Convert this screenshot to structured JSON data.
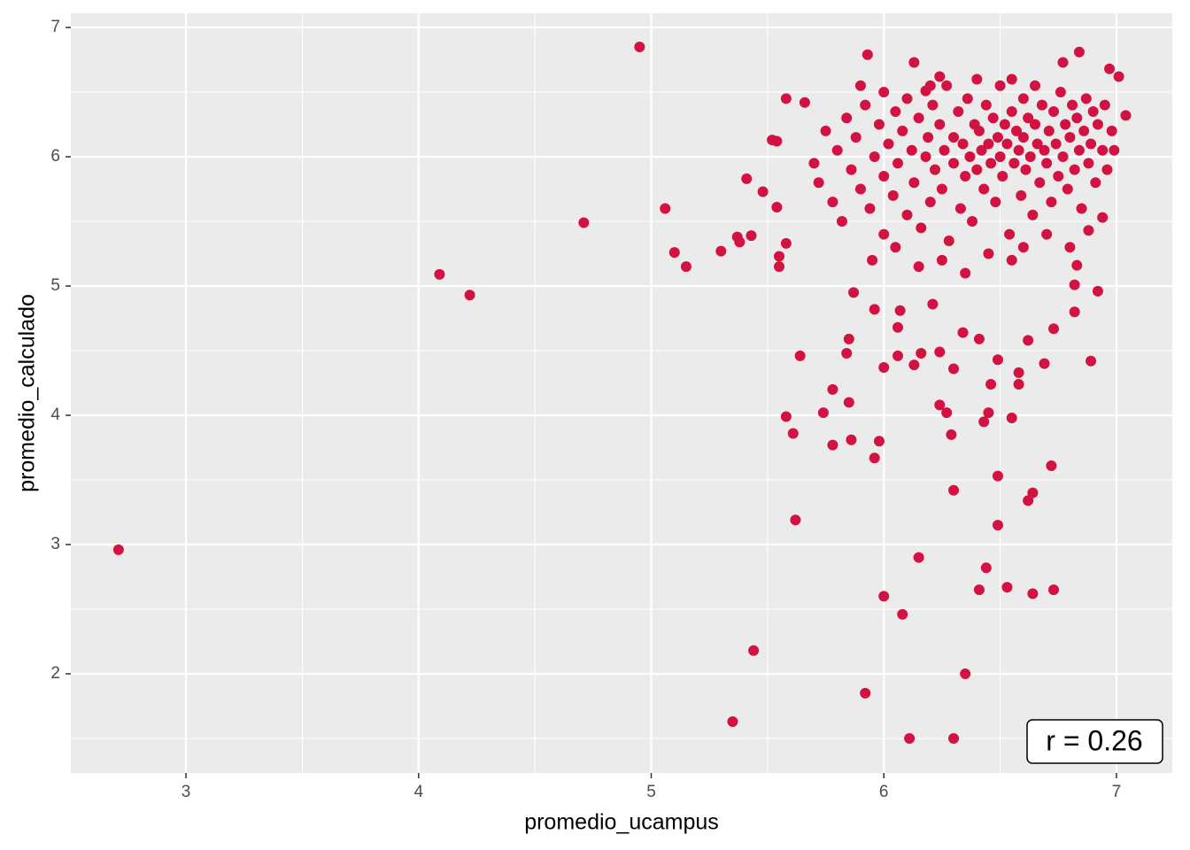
{
  "chart_data": {
    "type": "scatter",
    "x_label": "promedio_ucampus",
    "y_label": "promedio_calculado",
    "annotation": "r = 0.26",
    "color": "#d21240",
    "xlim": [
      2.505,
      7.24
    ],
    "ylim": [
      1.233,
      7.11
    ],
    "xticks": [
      3,
      4,
      5,
      6,
      7
    ],
    "yticks": [
      2,
      3,
      4,
      5,
      6,
      7
    ],
    "grid": true,
    "x": [
      2.71,
      4.09,
      4.22,
      4.71,
      4.95,
      5.06,
      5.1,
      5.15,
      5.3,
      5.37,
      5.38,
      5.43,
      5.41,
      5.35,
      5.44,
      5.62,
      5.92,
      6.0,
      6.11,
      6.3,
      6.08,
      6.15,
      6.35,
      6.3,
      6.41,
      6.44,
      6.53,
      6.49,
      6.49,
      6.62,
      6.64,
      6.64,
      6.73,
      6.72,
      6.89,
      5.58,
      5.61,
      5.78,
      5.74,
      5.78,
      5.64,
      5.86,
      5.96,
      5.98,
      5.85,
      5.84,
      5.85,
      6.0,
      6.13,
      6.24,
      6.27,
      6.29,
      6.43,
      6.45,
      6.55,
      6.58,
      6.58,
      6.46,
      6.3,
      6.16,
      6.24,
      6.69,
      6.82,
      6.82,
      6.92,
      6.73,
      6.62,
      6.49,
      6.41,
      6.34,
      6.06,
      6.07,
      5.96,
      5.87,
      6.06,
      6.21,
      5.55,
      5.58,
      5.55,
      5.54,
      5.48,
      5.52,
      5.54,
      5.58,
      5.66,
      5.93,
      6.13,
      6.24,
      6.18,
      6.97,
      7.01,
      7.04,
      6.99,
      6.84,
      6.77,
      6.94,
      6.88,
      6.83,
      5.7,
      5.72,
      5.75,
      5.78,
      5.8,
      5.82,
      5.84,
      5.86,
      5.88,
      5.9,
      5.92,
      5.94,
      5.96,
      5.98,
      6.0,
      6.0,
      6.02,
      6.04,
      6.05,
      6.06,
      6.08,
      6.1,
      6.1,
      6.12,
      6.13,
      6.15,
      6.16,
      6.18,
      6.19,
      6.2,
      6.21,
      6.22,
      6.24,
      6.25,
      6.26,
      6.27,
      6.28,
      6.3,
      6.3,
      6.32,
      6.33,
      6.34,
      6.35,
      6.36,
      6.37,
      6.38,
      6.39,
      6.4,
      6.41,
      6.42,
      6.43,
      6.44,
      6.45,
      6.46,
      6.47,
      6.48,
      6.49,
      6.5,
      6.5,
      6.51,
      6.52,
      6.53,
      6.54,
      6.55,
      6.56,
      6.57,
      6.58,
      6.59,
      6.6,
      6.6,
      6.61,
      6.62,
      6.63,
      6.64,
      6.65,
      6.66,
      6.67,
      6.68,
      6.69,
      6.7,
      6.71,
      6.72,
      6.73,
      6.74,
      6.75,
      6.76,
      6.77,
      6.78,
      6.79,
      6.8,
      6.81,
      6.82,
      6.83,
      6.84,
      6.85,
      6.86,
      6.87,
      6.88,
      6.89,
      6.9,
      6.91,
      6.92,
      6.94,
      6.95,
      6.96,
      6.98,
      6.6,
      6.45,
      6.7,
      6.25,
      6.05,
      5.95,
      6.35,
      6.15,
      6.55,
      6.8,
      6.4,
      6.55,
      6.65,
      6.2,
      6.0,
      5.9
    ],
    "y": [
      2.96,
      5.09,
      4.93,
      5.49,
      6.85,
      5.6,
      5.26,
      5.15,
      5.27,
      5.38,
      5.34,
      5.39,
      5.83,
      1.63,
      2.18,
      3.19,
      1.85,
      2.6,
      1.5,
      1.5,
      2.46,
      2.9,
      2.0,
      3.42,
      2.65,
      2.82,
      2.67,
      3.15,
      3.53,
      3.34,
      3.4,
      2.62,
      2.65,
      3.61,
      4.42,
      3.99,
      3.86,
      3.77,
      4.02,
      4.2,
      4.46,
      3.81,
      3.67,
      3.8,
      4.1,
      4.48,
      4.59,
      4.37,
      4.39,
      4.08,
      4.02,
      3.85,
      3.95,
      4.02,
      3.98,
      4.24,
      4.33,
      4.24,
      4.36,
      4.48,
      4.49,
      4.4,
      4.8,
      5.01,
      4.96,
      4.67,
      4.58,
      4.43,
      4.59,
      4.64,
      4.68,
      4.81,
      4.82,
      4.95,
      4.46,
      4.86,
      5.15,
      5.33,
      5.23,
      5.61,
      5.73,
      6.13,
      6.12,
      6.45,
      6.42,
      6.79,
      6.73,
      6.62,
      6.51,
      6.68,
      6.62,
      6.32,
      6.05,
      6.81,
      6.73,
      5.53,
      5.43,
      5.16,
      5.95,
      5.8,
      6.2,
      5.65,
      6.05,
      5.5,
      6.3,
      5.9,
      6.15,
      5.75,
      6.4,
      5.6,
      6.0,
      6.25,
      5.85,
      5.4,
      6.1,
      5.7,
      6.35,
      5.95,
      6.2,
      5.55,
      6.45,
      6.05,
      5.8,
      6.3,
      5.45,
      6.0,
      6.15,
      5.65,
      6.4,
      5.9,
      6.25,
      5.75,
      6.05,
      6.55,
      5.35,
      6.15,
      5.95,
      6.35,
      5.6,
      6.1,
      5.85,
      6.45,
      6.0,
      5.5,
      6.25,
      5.9,
      6.2,
      6.05,
      5.75,
      6.4,
      6.1,
      5.95,
      6.3,
      5.65,
      6.15,
      6.0,
      6.55,
      5.85,
      6.25,
      6.1,
      5.4,
      6.35,
      5.95,
      6.2,
      6.05,
      5.7,
      6.45,
      6.15,
      5.9,
      6.3,
      6.0,
      5.55,
      6.25,
      6.1,
      5.8,
      6.4,
      6.05,
      5.95,
      6.2,
      5.65,
      6.35,
      6.1,
      5.85,
      6.5,
      6.0,
      6.25,
      5.75,
      6.15,
      6.4,
      5.9,
      6.3,
      6.05,
      5.6,
      6.2,
      6.45,
      5.95,
      6.1,
      6.35,
      5.8,
      6.25,
      6.05,
      6.4,
      5.9,
      6.2,
      5.3,
      5.25,
      5.4,
      5.2,
      5.3,
      5.2,
      5.1,
      5.15,
      5.2,
      5.3,
      6.6,
      6.6,
      6.55,
      6.55,
      6.5,
      6.55
    ]
  }
}
